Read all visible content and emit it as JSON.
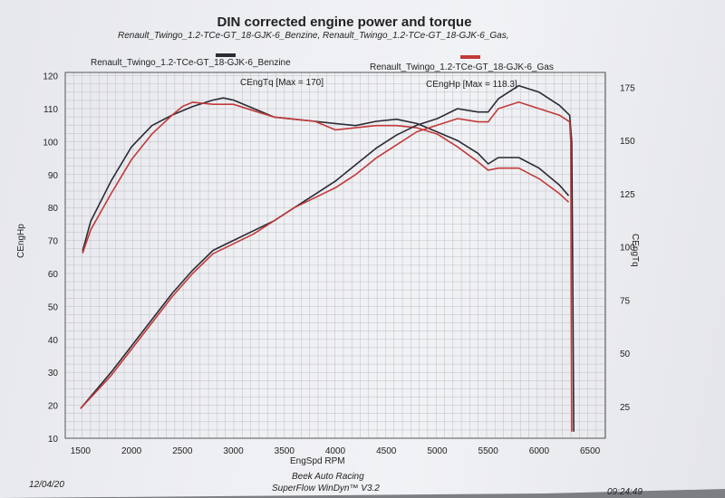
{
  "header": {
    "title": "DIN corrected engine power and torque",
    "subtitle": "Renault_Twingo_1.2-TCe-GT_18-GJK-6_Benzine, Renault_Twingo_1.2-TCe-GT_18-GJK-6_Gas,",
    "legend_left": "Renault_Twingo_1.2-TCe-GT_18-GJK-6_Benzine",
    "legend_right": "Renault_Twingo_1.2-TCe-GT_18-GJK-6_Gas"
  },
  "annotations": {
    "torque_max": "CEngTq [Max = 170]",
    "power_max": "CEngHp [Max = 118.3]"
  },
  "footer": {
    "date": "12/04/20",
    "shop": "Beek Auto Racing",
    "software": "SuperFlow WinDyn™ V3.2",
    "time": "09:24:49"
  },
  "colors": {
    "benzine": "#2a2b33",
    "gas": "#c23a3a",
    "grid": "#bdbec3",
    "frame": "#555555"
  },
  "chart_data": {
    "type": "line",
    "xlabel": "EngSpd RPM",
    "ylabel_left": "CEngHp",
    "ylabel_right": "CEngTq",
    "x_ticks": [
      1500,
      2000,
      2500,
      3000,
      3500,
      4000,
      4500,
      5000,
      5500,
      6000,
      6500
    ],
    "y_left_ticks": [
      10,
      20,
      30,
      40,
      50,
      60,
      70,
      80,
      90,
      100,
      110,
      120
    ],
    "y_right_ticks": [
      25,
      50,
      75,
      100,
      125,
      150,
      175
    ],
    "xlim": [
      1350,
      6650
    ],
    "ylim_left": [
      10,
      121
    ],
    "ylim_right": [
      10,
      182
    ],
    "grid": true,
    "series": [
      {
        "name": "Renault_Twingo_1.2-TCe-GT_18-GJK-6_Benzine",
        "quantity": "CEngTq",
        "axis": "right",
        "points": [
          [
            1520,
            98
          ],
          [
            1600,
            112
          ],
          [
            1800,
            131
          ],
          [
            2000,
            147
          ],
          [
            2200,
            157
          ],
          [
            2400,
            162
          ],
          [
            2600,
            166
          ],
          [
            2800,
            169
          ],
          [
            2900,
            170
          ],
          [
            3000,
            169
          ],
          [
            3200,
            165
          ],
          [
            3400,
            161
          ],
          [
            3600,
            160
          ],
          [
            3800,
            159
          ],
          [
            4000,
            158
          ],
          [
            4200,
            157
          ],
          [
            4400,
            159
          ],
          [
            4600,
            160
          ],
          [
            4800,
            158
          ],
          [
            5000,
            154
          ],
          [
            5200,
            150
          ],
          [
            5400,
            144
          ],
          [
            5500,
            139
          ],
          [
            5600,
            142
          ],
          [
            5800,
            142
          ],
          [
            6000,
            137
          ],
          [
            6200,
            129
          ],
          [
            6290,
            124
          ]
        ]
      },
      {
        "name": "Renault_Twingo_1.2-TCe-GT_18-GJK-6_Gas",
        "quantity": "CEngTq",
        "axis": "right",
        "points": [
          [
            1520,
            97
          ],
          [
            1600,
            108
          ],
          [
            1800,
            125
          ],
          [
            2000,
            141
          ],
          [
            2200,
            153
          ],
          [
            2400,
            162
          ],
          [
            2500,
            166
          ],
          [
            2600,
            168
          ],
          [
            2800,
            167
          ],
          [
            3000,
            167
          ],
          [
            3200,
            164
          ],
          [
            3400,
            161
          ],
          [
            3600,
            160
          ],
          [
            3800,
            159
          ],
          [
            4000,
            155
          ],
          [
            4200,
            156
          ],
          [
            4400,
            157
          ],
          [
            4600,
            157
          ],
          [
            4800,
            156
          ],
          [
            5000,
            153
          ],
          [
            5200,
            147
          ],
          [
            5400,
            140
          ],
          [
            5500,
            136
          ],
          [
            5600,
            137
          ],
          [
            5800,
            137
          ],
          [
            6000,
            132
          ],
          [
            6200,
            125
          ],
          [
            6290,
            121
          ]
        ]
      },
      {
        "name": "Renault_Twingo_1.2-TCe-GT_18-GJK-6_Benzine",
        "quantity": "CEngHp",
        "axis": "left",
        "points": [
          [
            1500,
            19
          ],
          [
            1800,
            30
          ],
          [
            2000,
            38
          ],
          [
            2200,
            46
          ],
          [
            2400,
            54
          ],
          [
            2600,
            61
          ],
          [
            2800,
            67
          ],
          [
            3000,
            70
          ],
          [
            3200,
            73
          ],
          [
            3400,
            76
          ],
          [
            3600,
            80
          ],
          [
            3800,
            84
          ],
          [
            4000,
            88
          ],
          [
            4200,
            93
          ],
          [
            4400,
            98
          ],
          [
            4600,
            102
          ],
          [
            4800,
            105
          ],
          [
            5000,
            107
          ],
          [
            5200,
            110
          ],
          [
            5400,
            109
          ],
          [
            5500,
            109
          ],
          [
            5600,
            113
          ],
          [
            5800,
            117
          ],
          [
            6000,
            115
          ],
          [
            6200,
            111
          ],
          [
            6300,
            108
          ],
          [
            6320,
            100
          ],
          [
            6330,
            60
          ],
          [
            6340,
            12
          ]
        ]
      },
      {
        "name": "Renault_Twingo_1.2-TCe-GT_18-GJK-6_Gas",
        "quantity": "CEngHp",
        "axis": "left",
        "points": [
          [
            1500,
            19
          ],
          [
            1800,
            29
          ],
          [
            2000,
            37
          ],
          [
            2200,
            45
          ],
          [
            2400,
            53
          ],
          [
            2600,
            60
          ],
          [
            2800,
            66
          ],
          [
            3000,
            69
          ],
          [
            3200,
            72
          ],
          [
            3400,
            76
          ],
          [
            3600,
            80
          ],
          [
            3800,
            83
          ],
          [
            4000,
            86
          ],
          [
            4200,
            90
          ],
          [
            4400,
            95
          ],
          [
            4600,
            99
          ],
          [
            4800,
            103
          ],
          [
            5000,
            105
          ],
          [
            5200,
            107
          ],
          [
            5400,
            106
          ],
          [
            5500,
            106
          ],
          [
            5600,
            110
          ],
          [
            5800,
            112
          ],
          [
            6000,
            110
          ],
          [
            6200,
            108
          ],
          [
            6300,
            106
          ],
          [
            6310,
            100
          ],
          [
            6315,
            50
          ],
          [
            6320,
            12
          ]
        ]
      }
    ]
  }
}
